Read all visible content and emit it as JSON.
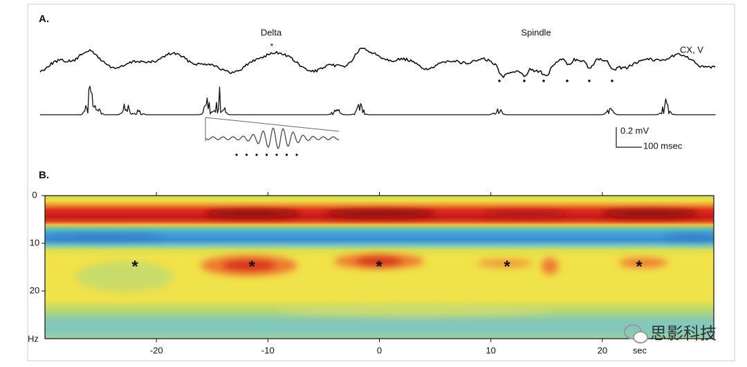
{
  "panel_a": {
    "label": "A.",
    "delta_label": "Delta",
    "spindle_label": "Spindle",
    "channel_label": "CX, V",
    "scale_voltage": "0.2 mV",
    "scale_time": "100 msec",
    "marker": "*"
  },
  "panel_b": {
    "label": "B.",
    "xlim": [
      -30,
      30
    ],
    "ylim": [
      0,
      30
    ],
    "yticks": [
      0,
      10,
      20
    ],
    "y_unit": "Hz",
    "xticks": [
      -20,
      -10,
      0,
      10,
      20
    ],
    "x_unit": "sec",
    "marker": "*"
  },
  "watermark": "思影科技"
}
